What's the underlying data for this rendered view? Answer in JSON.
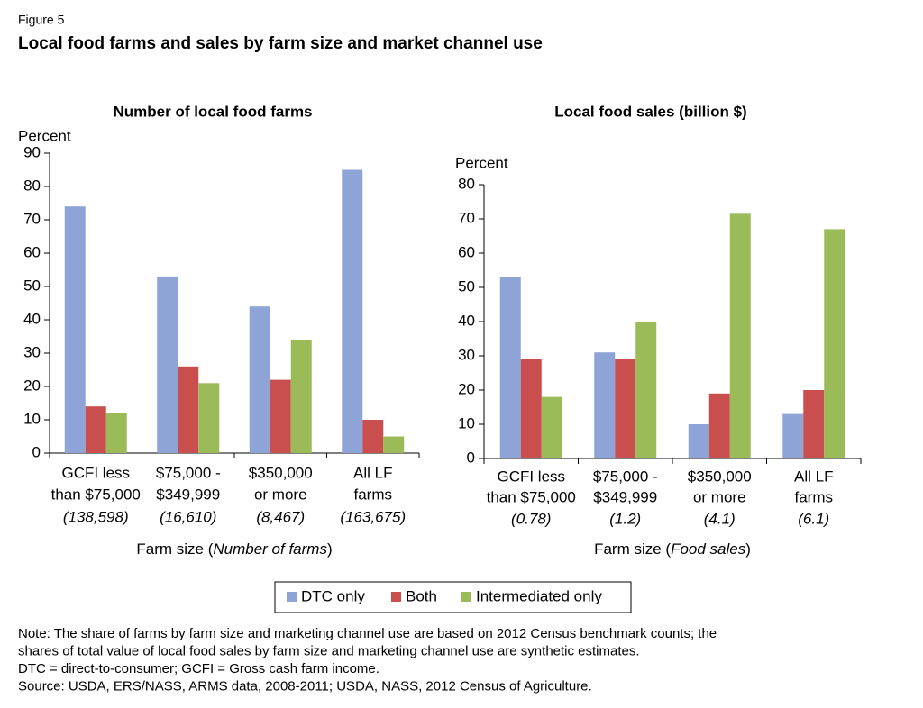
{
  "figure_label": "Figure 5",
  "title": "Local food farms and sales by farm size and market channel use",
  "legend": [
    {
      "name": "DTC only",
      "color": "#8ea3d6"
    },
    {
      "name": "Both",
      "color": "#c94f4f"
    },
    {
      "name": "Intermediated only",
      "color": "#9bbb59"
    }
  ],
  "chart_data": [
    {
      "type": "bar",
      "title": "Number of local food farms",
      "y_label": "Percent",
      "categories": [
        [
          "GCFI less",
          "than $75,000"
        ],
        [
          "$75,000 -",
          "$349,999"
        ],
        [
          "$350,000",
          "or more"
        ],
        [
          "All LF",
          "farms"
        ]
      ],
      "category_notes": [
        "(138,598)",
        "(16,610)",
        "(8,467)",
        "(163,675)"
      ],
      "x_label_parts": [
        "Farm size (",
        "Number of farms",
        ")"
      ],
      "series": [
        {
          "values": [
            74,
            53,
            44,
            85
          ]
        },
        {
          "values": [
            14,
            26,
            22,
            10
          ]
        },
        {
          "values": [
            12,
            21,
            34,
            5
          ]
        }
      ],
      "ylim": [
        0,
        90
      ],
      "yticks": [
        0,
        10,
        20,
        30,
        40,
        50,
        60,
        70,
        80,
        90
      ]
    },
    {
      "type": "bar",
      "title": "Local food sales (billion $)",
      "y_label": "Percent",
      "categories": [
        [
          "GCFI less",
          "than $75,000"
        ],
        [
          "$75,000 -",
          "$349,999"
        ],
        [
          "$350,000",
          "or more"
        ],
        [
          "All LF",
          "farms"
        ]
      ],
      "category_notes": [
        "(0.78)",
        "(1.2)",
        "(4.1)",
        "(6.1)"
      ],
      "x_label_parts": [
        "Farm size (",
        "Food sales",
        ")"
      ],
      "series": [
        {
          "values": [
            53,
            31,
            10,
            13
          ]
        },
        {
          "values": [
            29,
            29,
            19,
            20
          ]
        },
        {
          "values": [
            18,
            40,
            71.5,
            67
          ]
        }
      ],
      "ylim": [
        0,
        80
      ],
      "yticks": [
        0,
        10,
        20,
        30,
        40,
        50,
        60,
        70,
        80
      ]
    }
  ],
  "notes": [
    "Note: The share of farms by farm size and marketing channel use are based on 2012 Census benchmark counts; the",
    "shares of total value of local food sales by farm size and marketing channel use are synthetic estimates.",
    "DTC = direct-to-consumer; GCFI = Gross cash farm income.",
    "Source: USDA, ERS/NASS, ARMS data, 2008-2011; USDA, NASS, 2012 Census of Agriculture."
  ]
}
